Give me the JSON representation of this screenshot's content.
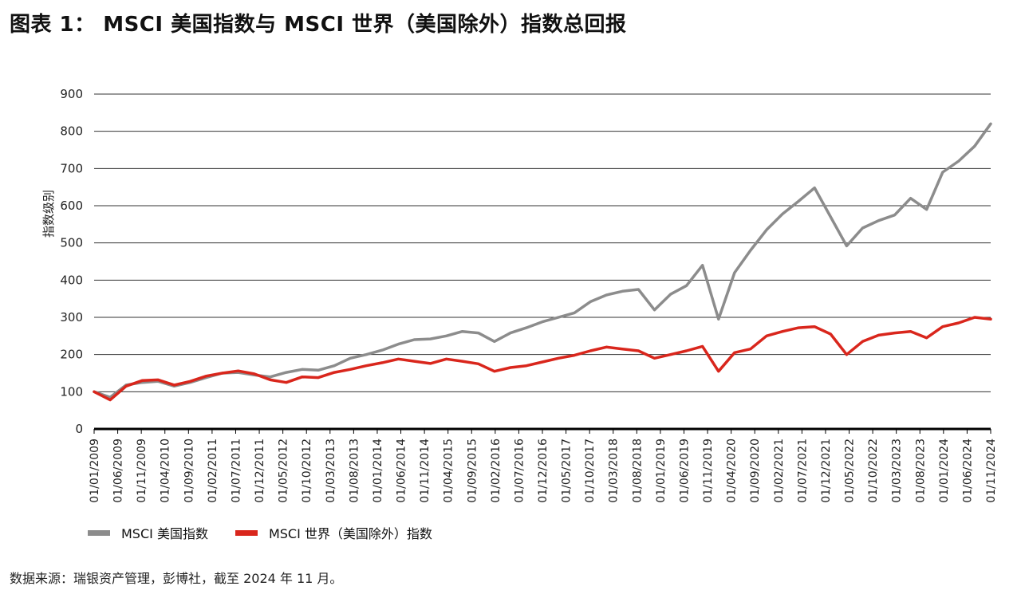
{
  "title": "图表 1： MSCI 美国指数与 MSCI 世界（美国除外）指数总回报",
  "source": "数据来源：瑞银资产管理，彭博社，截至 2024 年 11 月。",
  "colors": {
    "us": "#8c8c8c",
    "world_ex_us": "#d9261c",
    "grid": "#333333",
    "axis": "#000000"
  },
  "chart_data": {
    "type": "line",
    "ylabel": "指数级别",
    "xlabel": "",
    "ylim": [
      0,
      900
    ],
    "yticks": [
      0,
      100,
      200,
      300,
      400,
      500,
      600,
      700,
      800,
      900
    ],
    "grid": true,
    "legend_position": "bottom-left",
    "x_ticks": [
      "01/01/2009",
      "01/06/2009",
      "01/11/2009",
      "01/04/2010",
      "01/09/2010",
      "01/02/2011",
      "01/07/2011",
      "01/12/2011",
      "01/05/2012",
      "01/10/2012",
      "01/03/2013",
      "01/08/2013",
      "01/01/2014",
      "01/06/2014",
      "01/11/2014",
      "01/04/2015",
      "01/09/2015",
      "01/02/2016",
      "01/07/2016",
      "01/12/2016",
      "01/05/2017",
      "01/10/2017",
      "01/03/2018",
      "01/08/2018",
      "01/01/2019",
      "01/06/2019",
      "01/11/2019",
      "01/04/2020",
      "01/09/2020",
      "01/02/2021",
      "01/07/2021",
      "01/12/2021",
      "01/05/2022",
      "01/10/2022",
      "01/03/2023",
      "01/08/2023",
      "01/01/2024",
      "01/06/2024",
      "01/11/2024"
    ],
    "series": [
      {
        "name": "MSCI 美国指数",
        "values": [
          100,
          85,
          118,
          125,
          128,
          115,
          125,
          138,
          150,
          152,
          145,
          140,
          152,
          160,
          158,
          170,
          190,
          200,
          212,
          228,
          240,
          242,
          250,
          262,
          258,
          235,
          258,
          272,
          288,
          300,
          312,
          342,
          360,
          370,
          375,
          320,
          362,
          385,
          440,
          295,
          420,
          480,
          535,
          578,
          612,
          648,
          570,
          492,
          540,
          560,
          575,
          620,
          590,
          690,
          720,
          760,
          820
        ]
      },
      {
        "name": "MSCI 世界（美国除外）指数",
        "values": [
          100,
          78,
          115,
          130,
          132,
          118,
          128,
          142,
          150,
          156,
          148,
          132,
          125,
          140,
          138,
          152,
          160,
          170,
          178,
          188,
          182,
          176,
          188,
          182,
          175,
          155,
          165,
          170,
          180,
          190,
          198,
          210,
          220,
          215,
          210,
          190,
          200,
          210,
          222,
          155,
          205,
          215,
          250,
          262,
          272,
          275,
          255,
          200,
          235,
          252,
          258,
          262,
          245,
          275,
          285,
          300,
          295
        ]
      }
    ]
  }
}
